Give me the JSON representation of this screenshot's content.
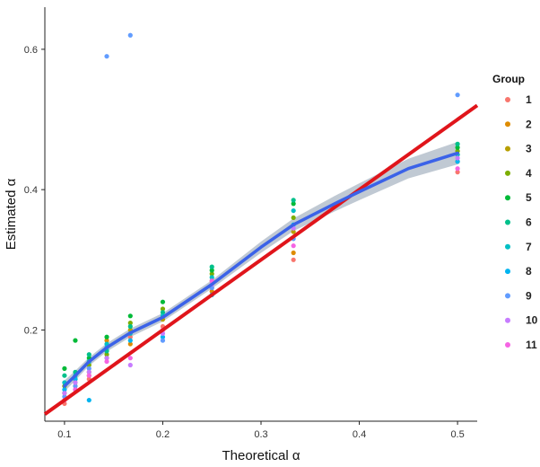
{
  "chart_data": {
    "type": "scatter",
    "xlabel": "Theoretical α",
    "ylabel": "Estimated α",
    "xlim": [
      0.08,
      0.52
    ],
    "ylim": [
      0.07,
      0.66
    ],
    "x_ticks": [
      0.1,
      0.2,
      0.3,
      0.4,
      0.5
    ],
    "x_tick_labels": [
      "0.1",
      "0.2",
      "0.3",
      "0.4",
      "0.5"
    ],
    "y_ticks": [
      0.2,
      0.4,
      0.6
    ],
    "y_tick_labels": [
      "0.2",
      "0.4",
      "0.6"
    ],
    "grid": false,
    "legend": {
      "title": "Group",
      "position": "right",
      "entries": [
        {
          "label": "1",
          "color": "#F8766D"
        },
        {
          "label": "2",
          "color": "#DE8C00"
        },
        {
          "label": "3",
          "color": "#B79F00"
        },
        {
          "label": "4",
          "color": "#7CAE00"
        },
        {
          "label": "5",
          "color": "#00BA38"
        },
        {
          "label": "6",
          "color": "#00C08B"
        },
        {
          "label": "7",
          "color": "#00BFC4"
        },
        {
          "label": "8",
          "color": "#00B4F0"
        },
        {
          "label": "9",
          "color": "#619CFF"
        },
        {
          "label": "10",
          "color": "#C77CFF"
        },
        {
          "label": "11",
          "color": "#F564E3"
        }
      ]
    },
    "series": [
      {
        "group": "1",
        "x": [
          0.1,
          0.111,
          0.125,
          0.143,
          0.167,
          0.2,
          0.25,
          0.333,
          0.5
        ],
        "y": [
          0.095,
          0.115,
          0.13,
          0.175,
          0.19,
          0.205,
          0.26,
          0.3,
          0.425
        ]
      },
      {
        "group": "2",
        "x": [
          0.1,
          0.111,
          0.125,
          0.143,
          0.167,
          0.2,
          0.25,
          0.333,
          0.5
        ],
        "y": [
          0.1,
          0.12,
          0.135,
          0.185,
          0.18,
          0.2,
          0.255,
          0.31,
          0.44
        ]
      },
      {
        "group": "3",
        "x": [
          0.1,
          0.111,
          0.125,
          0.143,
          0.167,
          0.2,
          0.25,
          0.333,
          0.5
        ],
        "y": [
          0.11,
          0.125,
          0.14,
          0.16,
          0.2,
          0.215,
          0.27,
          0.34,
          0.45
        ]
      },
      {
        "group": "4",
        "x": [
          0.1,
          0.111,
          0.125,
          0.143,
          0.167,
          0.2,
          0.25,
          0.333,
          0.5
        ],
        "y": [
          0.12,
          0.13,
          0.15,
          0.165,
          0.21,
          0.23,
          0.28,
          0.36,
          0.455
        ]
      },
      {
        "group": "5",
        "x": [
          0.1,
          0.111,
          0.125,
          0.143,
          0.167,
          0.2,
          0.25,
          0.333,
          0.5
        ],
        "y": [
          0.145,
          0.185,
          0.16,
          0.19,
          0.22,
          0.24,
          0.285,
          0.38,
          0.46
        ]
      },
      {
        "group": "6",
        "x": [
          0.1,
          0.111,
          0.125,
          0.143,
          0.167,
          0.2,
          0.25,
          0.333,
          0.5
        ],
        "y": [
          0.135,
          0.14,
          0.165,
          0.17,
          0.205,
          0.225,
          0.29,
          0.385,
          0.465
        ]
      },
      {
        "group": "7",
        "x": [
          0.1,
          0.111,
          0.125,
          0.143,
          0.167,
          0.2,
          0.25,
          0.333,
          0.5
        ],
        "y": [
          0.125,
          0.135,
          0.155,
          0.18,
          0.195,
          0.22,
          0.275,
          0.37,
          0.45
        ]
      },
      {
        "group": "8",
        "x": [
          0.1,
          0.111,
          0.125,
          0.143,
          0.167,
          0.2,
          0.25,
          0.333,
          0.5
        ],
        "y": [
          0.115,
          0.13,
          0.1,
          0.175,
          0.185,
          0.19,
          0.25,
          0.35,
          0.44
        ]
      },
      {
        "group": "9",
        "x": [
          0.1,
          0.111,
          0.125,
          0.143,
          0.167,
          0.2,
          0.25,
          0.333,
          0.5
        ],
        "y": [
          0.105,
          0.12,
          0.145,
          0.59,
          0.62,
          0.185,
          0.26,
          0.33,
          0.535
        ]
      },
      {
        "group": "10",
        "x": [
          0.1,
          0.111,
          0.125,
          0.143,
          0.167,
          0.2,
          0.25,
          0.333,
          0.5
        ],
        "y": [
          0.11,
          0.125,
          0.14,
          0.16,
          0.15,
          0.195,
          0.265,
          0.345,
          0.445
        ]
      },
      {
        "group": "11",
        "x": [
          0.1,
          0.111,
          0.125,
          0.143,
          0.167,
          0.2,
          0.25,
          0.333,
          0.5
        ],
        "y": [
          0.1,
          0.115,
          0.135,
          0.155,
          0.16,
          0.2,
          0.27,
          0.32,
          0.43
        ]
      }
    ],
    "smooth_fit": {
      "color": "#3B62E8",
      "band_color": "#B5BFCB",
      "x": [
        0.1,
        0.111,
        0.125,
        0.143,
        0.167,
        0.2,
        0.25,
        0.3,
        0.333,
        0.375,
        0.4,
        0.45,
        0.5
      ],
      "y": [
        0.12,
        0.135,
        0.155,
        0.175,
        0.196,
        0.218,
        0.265,
        0.318,
        0.35,
        0.38,
        0.397,
        0.43,
        0.452
      ],
      "band": [
        0.008,
        0.007,
        0.006,
        0.006,
        0.006,
        0.006,
        0.006,
        0.008,
        0.009,
        0.011,
        0.012,
        0.014,
        0.016
      ]
    },
    "reference_line": {
      "color": "#E0151B",
      "x": [
        0.08,
        0.52
      ],
      "y": [
        0.08,
        0.52
      ]
    }
  }
}
